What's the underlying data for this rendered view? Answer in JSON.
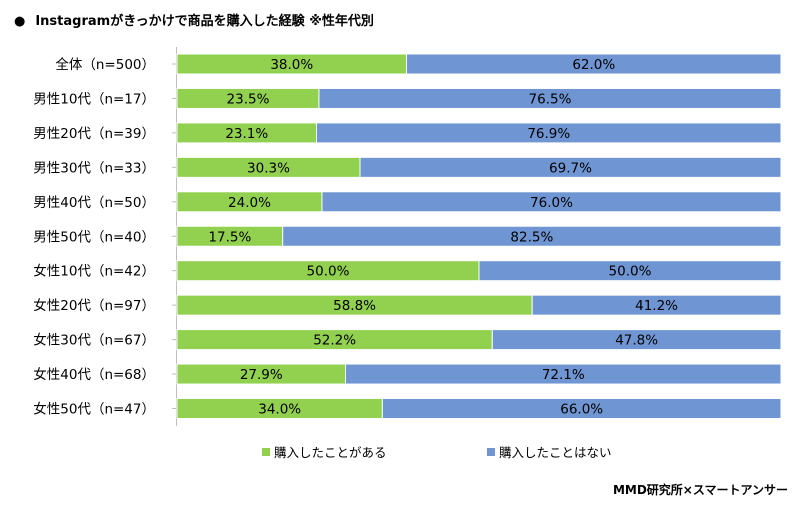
{
  "chart_data": {
    "type": "bar",
    "orientation": "horizontal",
    "stacked": true,
    "percent": true,
    "title": "Instagramがきっかけで商品を購入した経験 ※性年代別",
    "title_bullet": "●",
    "categories": [
      "全体（n=500）",
      "男性10代（n=17）",
      "男性20代（n=39）",
      "男性30代（n=33）",
      "男性40代（n=50）",
      "男性50代（n=40）",
      "女性10代（n=42）",
      "女性20代（n=97）",
      "女性30代（n=67）",
      "女性40代（n=68）",
      "女性50代（n=47）"
    ],
    "series": [
      {
        "name": "購入したことがある",
        "color": "#92d050",
        "values": [
          38.0,
          23.5,
          23.1,
          30.3,
          24.0,
          17.5,
          50.0,
          58.8,
          52.2,
          27.9,
          34.0
        ],
        "labels": [
          "38.0%",
          "23.5%",
          "23.1%",
          "30.3%",
          "24.0%",
          "17.5%",
          "50.0%",
          "58.8%",
          "52.2%",
          "27.9%",
          "34.0%"
        ]
      },
      {
        "name": "購入したことはない",
        "color": "#6f95d3",
        "values": [
          62.0,
          76.5,
          76.9,
          69.7,
          76.0,
          82.5,
          50.0,
          41.2,
          47.8,
          72.1,
          66.0
        ],
        "labels": [
          "62.0%",
          "76.5%",
          "76.9%",
          "69.7%",
          "76.0%",
          "82.5%",
          "50.0%",
          "41.2%",
          "47.8%",
          "72.1%",
          "66.0%"
        ]
      }
    ],
    "xlim": [
      0,
      100
    ],
    "legend_position": "bottom",
    "grid": false
  },
  "credit": "MMD研究所×スマートアンサー"
}
